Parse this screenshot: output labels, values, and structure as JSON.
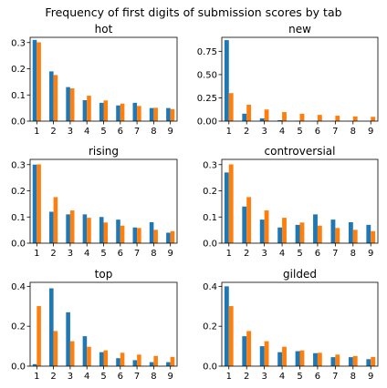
{
  "suptitle": "Frequency of first digits of submission scores by tab",
  "colors": {
    "series_a": "#1f77b4",
    "series_b": "#ff7f0e",
    "axis": "#000000"
  },
  "chart_data": [
    {
      "type": "bar",
      "title": "hot",
      "categories": [
        "1",
        "2",
        "3",
        "4",
        "5",
        "6",
        "7",
        "8",
        "9"
      ],
      "series": [
        {
          "values": [
            0.31,
            0.19,
            0.13,
            0.08,
            0.07,
            0.06,
            0.07,
            0.05,
            0.05
          ]
        },
        {
          "values": [
            0.301,
            0.176,
            0.125,
            0.097,
            0.079,
            0.067,
            0.058,
            0.051,
            0.046
          ]
        }
      ],
      "ylim": [
        0,
        0.32
      ],
      "yticks": [
        "0.0",
        "0.1",
        "0.2",
        "0.3"
      ],
      "ytick_values": [
        0,
        0.1,
        0.2,
        0.3
      ]
    },
    {
      "type": "bar",
      "title": "new",
      "categories": [
        "1",
        "2",
        "3",
        "4",
        "5",
        "6",
        "7",
        "8",
        "9"
      ],
      "series": [
        {
          "values": [
            0.87,
            0.08,
            0.03,
            0.01,
            0.005,
            0.003,
            0.002,
            0.002,
            0.002
          ]
        },
        {
          "values": [
            0.301,
            0.176,
            0.125,
            0.097,
            0.079,
            0.067,
            0.058,
            0.051,
            0.046
          ]
        }
      ],
      "ylim": [
        0,
        0.9
      ],
      "yticks": [
        "0.00",
        "0.25",
        "0.50",
        "0.75"
      ],
      "ytick_values": [
        0,
        0.25,
        0.5,
        0.75
      ]
    },
    {
      "type": "bar",
      "title": "rising",
      "categories": [
        "1",
        "2",
        "3",
        "4",
        "5",
        "6",
        "7",
        "8",
        "9"
      ],
      "series": [
        {
          "values": [
            0.3,
            0.12,
            0.11,
            0.11,
            0.1,
            0.09,
            0.06,
            0.08,
            0.04
          ]
        },
        {
          "values": [
            0.301,
            0.176,
            0.125,
            0.097,
            0.079,
            0.067,
            0.058,
            0.051,
            0.046
          ]
        }
      ],
      "ylim": [
        0,
        0.32
      ],
      "yticks": [
        "0.0",
        "0.1",
        "0.2",
        "0.3"
      ],
      "ytick_values": [
        0,
        0.1,
        0.2,
        0.3
      ]
    },
    {
      "type": "bar",
      "title": "controversial",
      "categories": [
        "1",
        "2",
        "3",
        "4",
        "5",
        "6",
        "7",
        "8",
        "9"
      ],
      "series": [
        {
          "values": [
            0.27,
            0.14,
            0.09,
            0.06,
            0.07,
            0.11,
            0.09,
            0.08,
            0.07
          ]
        },
        {
          "values": [
            0.301,
            0.176,
            0.125,
            0.097,
            0.079,
            0.067,
            0.058,
            0.051,
            0.046
          ]
        }
      ],
      "ylim": [
        0,
        0.32
      ],
      "yticks": [
        "0.0",
        "0.1",
        "0.2",
        "0.3"
      ],
      "ytick_values": [
        0,
        0.1,
        0.2,
        0.3
      ]
    },
    {
      "type": "bar",
      "title": "top",
      "categories": [
        "1",
        "2",
        "3",
        "4",
        "5",
        "6",
        "7",
        "8",
        "9"
      ],
      "series": [
        {
          "values": [
            0.01,
            0.39,
            0.27,
            0.15,
            0.07,
            0.04,
            0.03,
            0.02,
            0.02
          ]
        },
        {
          "values": [
            0.301,
            0.176,
            0.125,
            0.097,
            0.079,
            0.067,
            0.058,
            0.051,
            0.046
          ]
        }
      ],
      "ylim": [
        0,
        0.42
      ],
      "yticks": [
        "0.0",
        "0.2",
        "0.4"
      ],
      "ytick_values": [
        0,
        0.2,
        0.4
      ]
    },
    {
      "type": "bar",
      "title": "gilded",
      "categories": [
        "1",
        "2",
        "3",
        "4",
        "5",
        "6",
        "7",
        "8",
        "9"
      ],
      "series": [
        {
          "values": [
            0.4,
            0.15,
            0.1,
            0.07,
            0.075,
            0.065,
            0.045,
            0.045,
            0.035
          ]
        },
        {
          "values": [
            0.301,
            0.176,
            0.125,
            0.097,
            0.079,
            0.067,
            0.058,
            0.051,
            0.046
          ]
        }
      ],
      "ylim": [
        0,
        0.42
      ],
      "yticks": [
        "0.0",
        "0.2",
        "0.4"
      ],
      "ytick_values": [
        0,
        0.2,
        0.4
      ]
    }
  ]
}
